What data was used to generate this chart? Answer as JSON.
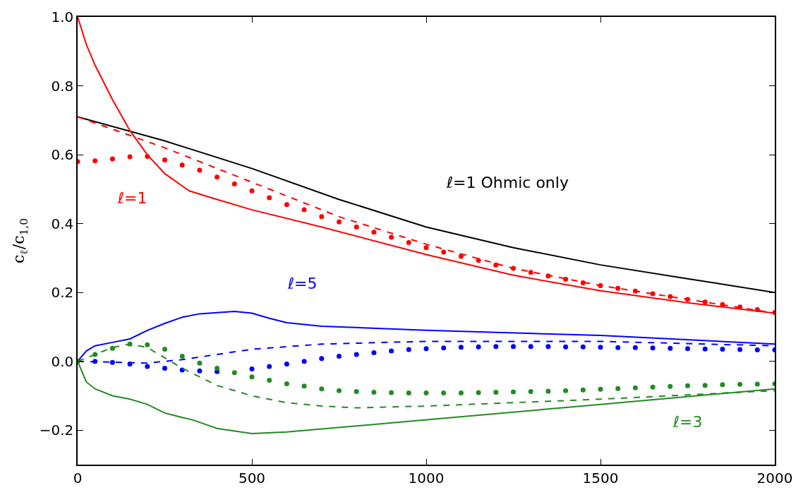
{
  "chart_data": {
    "type": "line",
    "ylabel": "c$_{ℓ}$/c$_{1,0}$",
    "xlim": [
      0,
      2000
    ],
    "xticks": [
      0,
      500,
      1000,
      1500,
      2000
    ],
    "ylim": [
      -0.3,
      1.0
    ],
    "yticks": [
      {
        "value": -0.2,
        "label": "−0.2"
      },
      "0.0",
      0.2,
      0.4,
      0.6,
      0.8,
      "1.0"
    ],
    "legend": false,
    "series": [
      {
        "name": "ℓ=1 Ohmic only",
        "line_style": "solid",
        "marker": "none",
        "color": "#000000",
        "x": [
          0,
          250,
          500,
          750,
          1000,
          1250,
          1500,
          1750,
          2000
        ],
        "values": [
          0.71,
          0.64,
          0.56,
          0.47,
          0.39,
          0.33,
          0.28,
          0.24,
          0.2
        ]
      },
      {
        "name": "ℓ=1",
        "line_style": "solid",
        "marker": "none",
        "color": "#ff0000",
        "x": [
          0,
          25,
          50,
          100,
          150,
          200,
          250,
          320,
          400,
          500,
          700,
          1000,
          1250,
          1500,
          1750,
          2000
        ],
        "values": [
          1.0,
          0.92,
          0.86,
          0.76,
          0.67,
          0.6,
          0.545,
          0.495,
          0.47,
          0.44,
          0.39,
          0.31,
          0.25,
          0.205,
          0.17,
          0.14
        ]
      },
      {
        "line_style": "dashed",
        "marker": "none",
        "color": "#ff0000",
        "x": [
          0,
          250,
          500,
          750,
          1000,
          1250,
          1500,
          1750,
          2000
        ],
        "values": [
          0.71,
          0.62,
          0.52,
          0.42,
          0.34,
          0.27,
          0.22,
          0.18,
          0.14
        ]
      },
      {
        "type": "scatter",
        "marker": "circle",
        "color": "#ff0000",
        "x": [
          0,
          50,
          100,
          150,
          200,
          250,
          300,
          350,
          400,
          450,
          500,
          550,
          600,
          650,
          700,
          750,
          800,
          850,
          900,
          950,
          1000,
          1050,
          1100,
          1150,
          1200,
          1250,
          1300,
          1350,
          1400,
          1450,
          1500,
          1550,
          1600,
          1650,
          1700,
          1750,
          1800,
          1850,
          1900,
          1950,
          2000
        ],
        "values": [
          0.58,
          0.582,
          0.588,
          0.594,
          0.595,
          0.585,
          0.57,
          0.555,
          0.535,
          0.515,
          0.495,
          0.475,
          0.455,
          0.44,
          0.42,
          0.405,
          0.39,
          0.375,
          0.36,
          0.345,
          0.33,
          0.317,
          0.305,
          0.293,
          0.28,
          0.27,
          0.258,
          0.248,
          0.238,
          0.228,
          0.22,
          0.212,
          0.204,
          0.196,
          0.188,
          0.18,
          0.172,
          0.165,
          0.158,
          0.15,
          0.142
        ]
      },
      {
        "name": "ℓ=5",
        "line_style": "solid",
        "marker": "none",
        "color": "#0000ff",
        "x": [
          0,
          25,
          50,
          100,
          150,
          200,
          250,
          300,
          350,
          450,
          500,
          550,
          600,
          700,
          1000,
          1500,
          2000
        ],
        "values": [
          0,
          0.03,
          0.045,
          0.055,
          0.065,
          0.09,
          0.11,
          0.128,
          0.138,
          0.145,
          0.14,
          0.125,
          0.112,
          0.102,
          0.09,
          0.075,
          0.05
        ]
      },
      {
        "line_style": "dashed",
        "marker": "none",
        "color": "#0000ff",
        "x": [
          0,
          200,
          300,
          400,
          500,
          700,
          1000,
          1500,
          2000
        ],
        "values": [
          0,
          -0.005,
          0.005,
          0.02,
          0.035,
          0.05,
          0.058,
          0.058,
          0.045
        ]
      },
      {
        "type": "scatter",
        "marker": "circle",
        "color": "#0000ff",
        "x": [
          0,
          50,
          100,
          150,
          200,
          250,
          300,
          350,
          400,
          450,
          500,
          550,
          600,
          650,
          700,
          750,
          800,
          850,
          900,
          950,
          1000,
          1050,
          1100,
          1150,
          1200,
          1250,
          1300,
          1350,
          1400,
          1450,
          1500,
          1550,
          1600,
          1650,
          1700,
          1750,
          1800,
          1850,
          1900,
          1950,
          2000
        ],
        "values": [
          0,
          0,
          -0.003,
          -0.008,
          -0.015,
          -0.02,
          -0.025,
          -0.028,
          -0.03,
          null,
          -0.022,
          -0.015,
          -0.008,
          0,
          0.008,
          0.015,
          0.02,
          0.025,
          0.03,
          0.034,
          0.037,
          0.039,
          0.041,
          0.042,
          0.043,
          0.043,
          0.043,
          0.043,
          0.042,
          0.042,
          0.041,
          0.04,
          0.04,
          0.039,
          0.038,
          0.037,
          0.036,
          0.035,
          0.034,
          0.033,
          0.033
        ]
      },
      {
        "name": "ℓ=3",
        "line_style": "solid",
        "marker": "none",
        "color": "#228b22",
        "x": [
          0,
          25,
          50,
          100,
          150,
          200,
          250,
          300,
          330,
          400,
          500,
          600,
          1000,
          1500,
          2000
        ],
        "values": [
          0,
          -0.06,
          -0.08,
          -0.1,
          -0.11,
          -0.125,
          -0.15,
          -0.163,
          -0.17,
          -0.195,
          -0.21,
          -0.205,
          -0.17,
          -0.125,
          -0.08
        ]
      },
      {
        "line_style": "dashed",
        "marker": "none",
        "color": "#228b22",
        "x": [
          0,
          100,
          150,
          200,
          250,
          300,
          400,
          500,
          600,
          700,
          800,
          1000,
          1500,
          2000
        ],
        "values": [
          0,
          0.04,
          0.05,
          0.04,
          0.01,
          -0.02,
          -0.07,
          -0.1,
          -0.12,
          -0.13,
          -0.135,
          -0.13,
          -0.11,
          -0.085
        ]
      },
      {
        "type": "scatter",
        "marker": "circle",
        "color": "#228b22",
        "x": [
          0,
          50,
          100,
          150,
          200,
          250,
          300,
          350,
          400,
          450,
          500,
          550,
          600,
          650,
          700,
          750,
          800,
          850,
          900,
          950,
          1000,
          1050,
          1100,
          1150,
          1200,
          1250,
          1300,
          1350,
          1400,
          1450,
          1500,
          1550,
          1600,
          1650,
          1700,
          1750,
          1800,
          1850,
          1900,
          1950,
          2000
        ],
        "values": [
          0,
          0.02,
          0.038,
          0.05,
          0.048,
          0.035,
          0.015,
          -0.005,
          -0.02,
          -0.033,
          -0.045,
          -0.055,
          -0.065,
          -0.072,
          -0.08,
          -0.085,
          -0.088,
          -0.09,
          -0.091,
          -0.092,
          -0.092,
          -0.092,
          -0.092,
          -0.091,
          -0.09,
          -0.089,
          -0.088,
          -0.087,
          -0.085,
          -0.083,
          -0.081,
          -0.079,
          -0.077,
          -0.075,
          -0.073,
          -0.071,
          -0.07,
          -0.068,
          -0.067,
          -0.066,
          -0.065
        ]
      }
    ]
  }
}
